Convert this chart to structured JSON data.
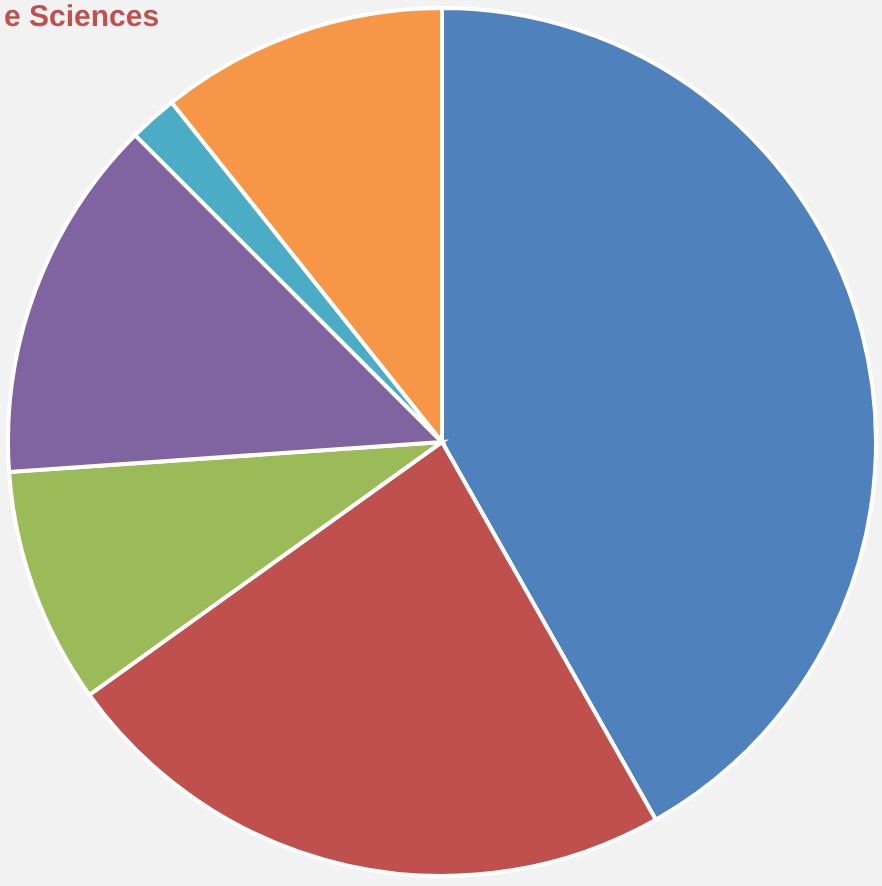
{
  "chart_data": {
    "type": "pie",
    "title": "e Sciences",
    "categories": [
      null,
      null,
      null,
      null,
      null,
      null
    ],
    "values": [
      41.8,
      23.3,
      8.8,
      13.6,
      1.8,
      10.7
    ],
    "colors": [
      "#4f81bd",
      "#c0504d",
      "#9bbb59",
      "#8064a2",
      "#4bacc6",
      "#f79646"
    ]
  }
}
